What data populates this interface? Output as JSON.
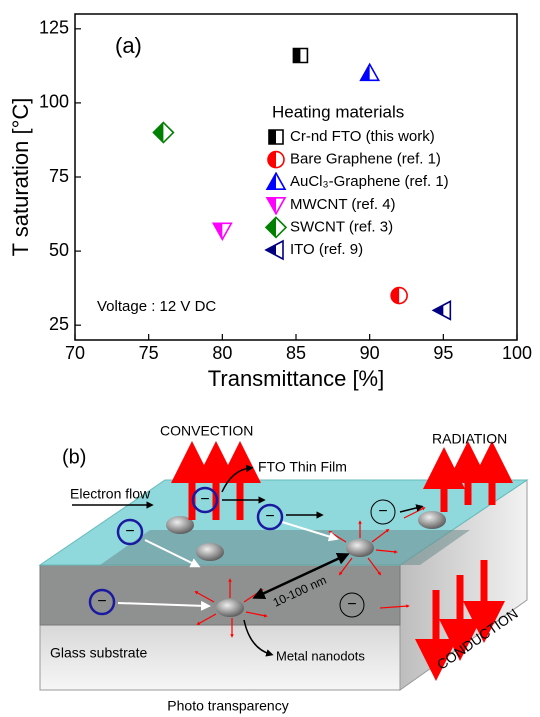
{
  "chart_data": {
    "type": "scatter",
    "annotations": [
      "(a)",
      "Voltage : 12 V DC"
    ],
    "xlabel": "Transmittance [%]",
    "ylabel": "T saturation [°C]",
    "legend_title": "Heating materials",
    "legend": "right",
    "xlim": [
      70,
      100
    ],
    "xticks": [
      70,
      75,
      80,
      85,
      90,
      95,
      100
    ],
    "ylim": [
      20,
      130
    ],
    "yticks": [
      25,
      50,
      75,
      100,
      125
    ],
    "series": [
      {
        "name": "Cr-nd FTO (this work)",
        "color": "#000000",
        "marker": "square",
        "x": [
          85.3
        ],
        "values": [
          116
        ]
      },
      {
        "name": "Bare Graphene (ref. 1)",
        "color": "#ff0000",
        "marker": "circle",
        "x": [
          92
        ],
        "values": [
          35
        ]
      },
      {
        "name": "AuCl₃-Graphene (ref. 1)",
        "color": "#0000ff",
        "marker": "triangle-up",
        "x": [
          90
        ],
        "values": [
          110
        ]
      },
      {
        "name": "MWCNT (ref. 4)",
        "color": "#ff00ff",
        "marker": "triangle-down",
        "x": [
          80
        ],
        "values": [
          57
        ]
      },
      {
        "name": "SWCNT (ref. 3)",
        "color": "#008000",
        "marker": "diamond",
        "x": [
          76
        ],
        "values": [
          90
        ]
      },
      {
        "name": "ITO (ref. 9)",
        "color": "#000080",
        "marker": "triangle-left",
        "x": [
          95
        ],
        "values": [
          30
        ]
      }
    ]
  },
  "diagram": {
    "label": "(b)",
    "convection": "CONVECTION",
    "radiation": "RADIATION",
    "film": "FTO Thin Film",
    "electron_flow": "Electron flow",
    "distance": "10-100 nm",
    "substrate": "Glass substrate",
    "nanodots": "Metal nanodots",
    "conduction": "CONDUCTION",
    "caption": "Photo transparency",
    "electron_charge": "−"
  }
}
